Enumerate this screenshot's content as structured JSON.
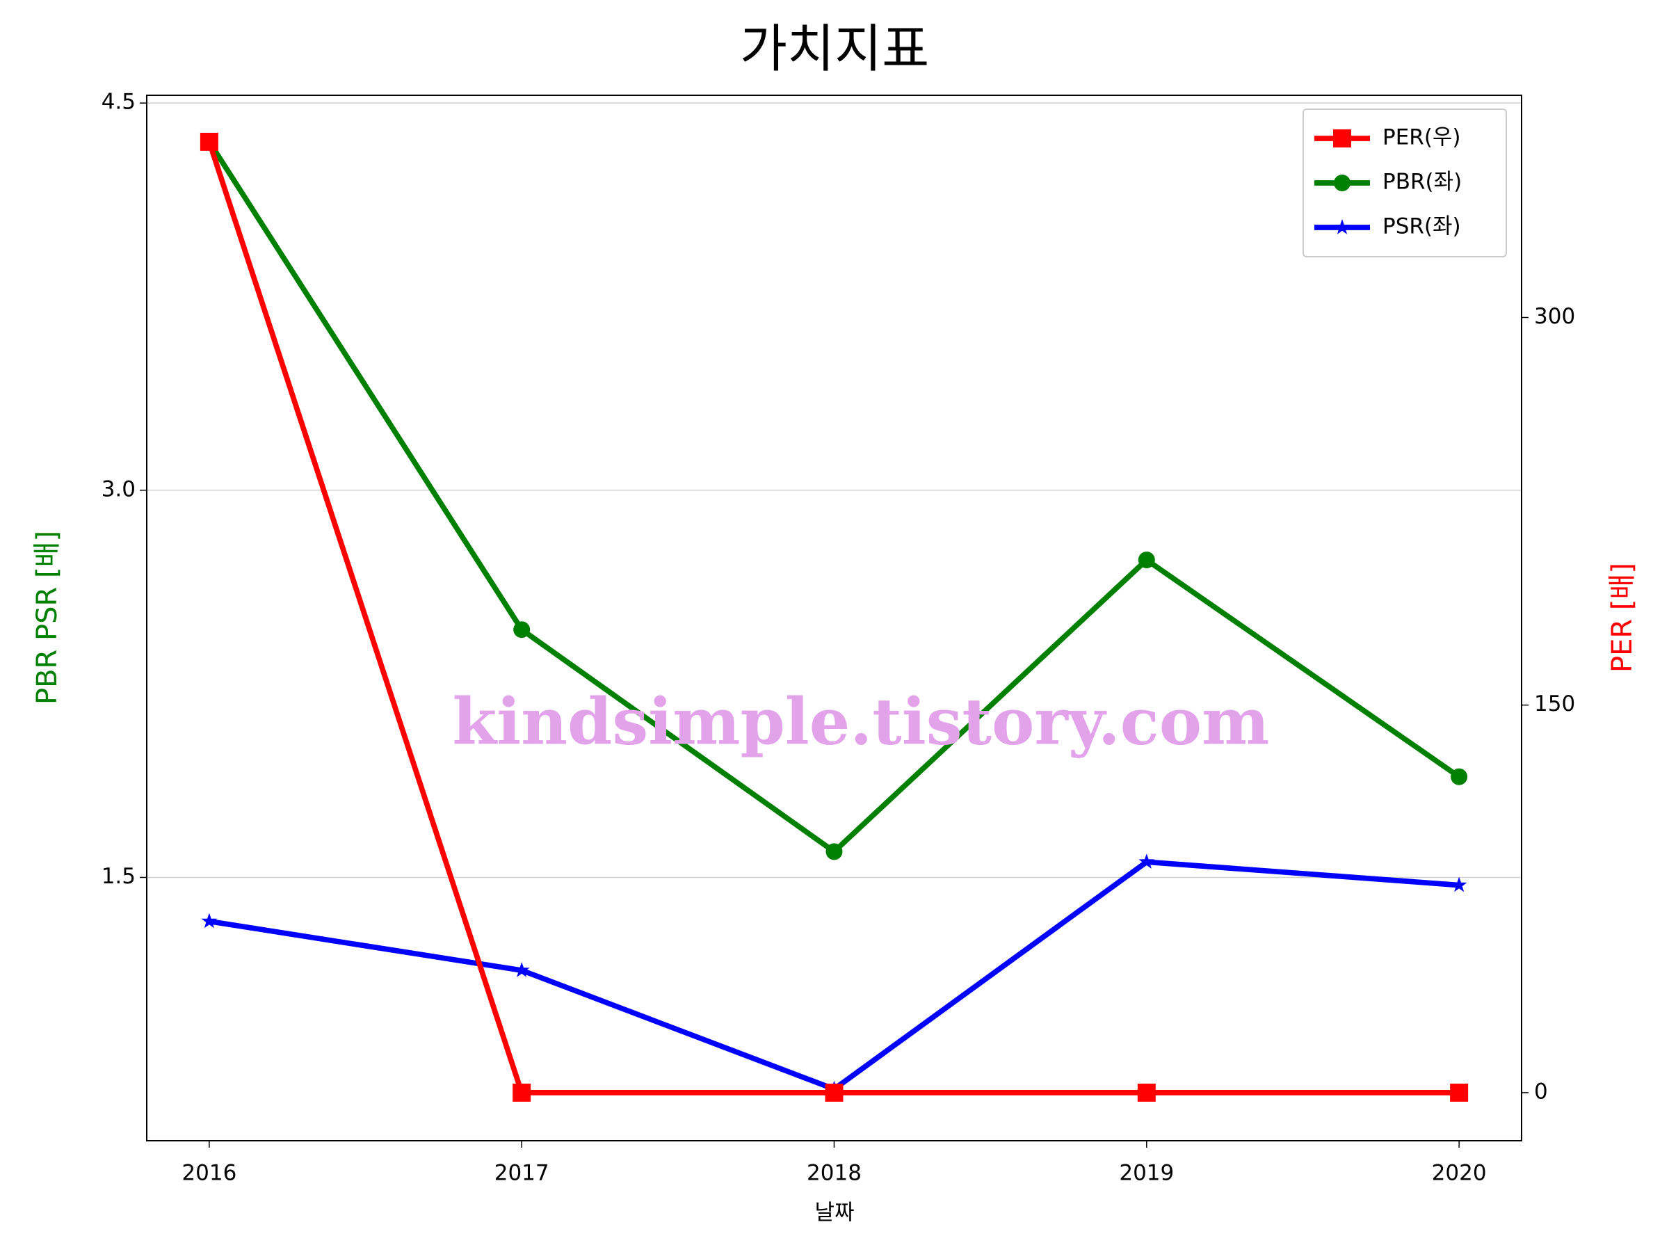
{
  "chart_data": {
    "type": "line",
    "title": "가치지표",
    "x_label": "날짜",
    "y_label": "PBR PSR [배]",
    "y2_label": "PER [배]",
    "annotation": "kindsimple.tistory.com",
    "x": [
      2016,
      2017,
      2018,
      2019,
      2020
    ],
    "xlim": [
      2015.8,
      2020.2
    ],
    "xticks": [
      2016,
      2017,
      2018,
      2019,
      2020
    ],
    "ylim": [
      0.48,
      4.53
    ],
    "yticks": [
      1.5,
      {
        "value": 3,
        "label": "3.0"
      },
      4.5
    ],
    "y2lim": [
      -18.6,
      386
    ],
    "y2ticks": [
      0,
      150,
      300
    ],
    "grid": true,
    "legend": "upper right",
    "series": [
      {
        "name": "PER(우)",
        "color": "#ff0000",
        "marker": "square",
        "axis": "y2",
        "values": [
          368,
          0,
          0,
          0,
          0
        ]
      },
      {
        "name": "PBR(좌)",
        "color": "#008000",
        "marker": "circle",
        "values": [
          4.35,
          2.46,
          1.6,
          2.73,
          1.89
        ]
      },
      {
        "name": "PSR(좌)",
        "color": "#0000ff",
        "marker": "star",
        "values": [
          1.33,
          1.14,
          0.68,
          1.56,
          1.47
        ]
      }
    ]
  }
}
